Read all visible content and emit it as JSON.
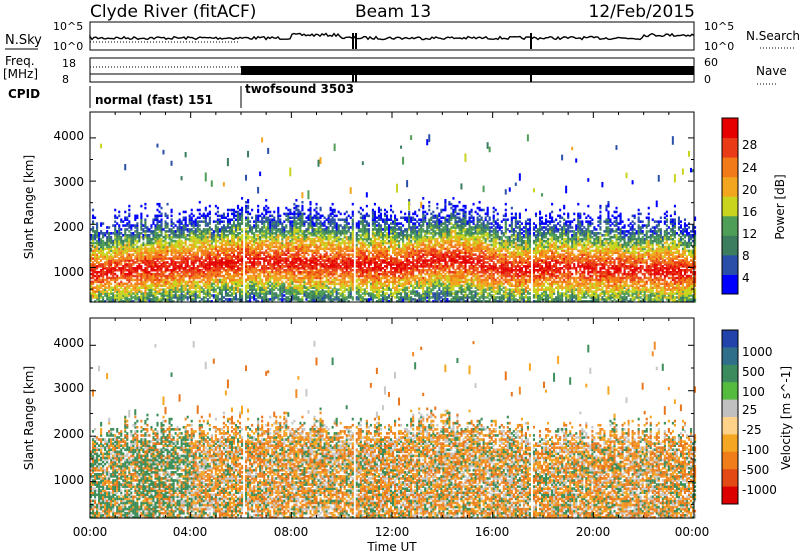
{
  "header": {
    "station": "Clyde River (fitACF)",
    "beam": "Beam 13",
    "date": "12/Feb/2015"
  },
  "params": {
    "nsky_label": "N.Sky",
    "nsearch_label": "N.Search",
    "freq_label": "Freq.",
    "freq_unit": "[MHz]",
    "nave_label": "Nave",
    "cpid_label": "CPID",
    "nsky_ticks": [
      "10^5",
      "10^0"
    ],
    "nsearch_ticks": [
      "10^5",
      "10^0"
    ],
    "freq_ticks": [
      "18",
      "8"
    ],
    "nave_ticks": [
      "60",
      "0"
    ]
  },
  "cpid_segments": [
    {
      "label": "normal (fast) 151",
      "start_h": 0,
      "end_h": 6
    },
    {
      "label": "twofsound 3503",
      "start_h": 6,
      "end_h": 24
    }
  ],
  "time_axis": {
    "label": "Time UT",
    "ticks": [
      "00:00",
      "04:00",
      "08:00",
      "12:00",
      "16:00",
      "20:00",
      "00:00"
    ],
    "range_h": [
      0,
      24
    ]
  },
  "colors": {
    "power": [
      "#0000ff",
      "#2a4fa8",
      "#3c7d5f",
      "#4f9e57",
      "#c8d41e",
      "#f2a51f",
      "#f27a18",
      "#ea3b17",
      "#e60000"
    ],
    "velocity": [
      "#2244aa",
      "#2f6f8a",
      "#3b8b5f",
      "#55bb3f",
      "#c0c0c0",
      "#ffd28a",
      "#f5a623",
      "#f07d1a",
      "#e34a14",
      "#dd0000"
    ],
    "vel_main": [
      "#f28c28",
      "#f5a623",
      "#3c8f5a",
      "#c8c8c8",
      "#e8761e"
    ]
  },
  "chart_data": [
    {
      "type": "heatmap",
      "name": "power",
      "ylabel": "Slant Range [km]",
      "yticks": [
        "4000",
        "3000",
        "2000",
        "1000"
      ],
      "ylim": [
        200,
        4600
      ],
      "xlim": [
        0,
        24
      ],
      "colorbar_label": "Power [dB]",
      "colorbar_ticks": [
        "28",
        "24",
        "20",
        "16",
        "12",
        "8",
        "4"
      ],
      "colorbar_range": [
        0,
        32
      ],
      "description_series": [
        {
          "name": "main_scatter_band",
          "center_km": [
            1000,
            900,
            950,
            1000,
            950,
            900,
            850
          ],
          "t_h": [
            0,
            4,
            8,
            12,
            16,
            20,
            24
          ]
        }
      ]
    },
    {
      "type": "heatmap",
      "name": "velocity",
      "ylabel": "Slant Range [km]",
      "yticks": [
        "4000",
        "3000",
        "2000",
        "1000"
      ],
      "ylim": [
        200,
        4600
      ],
      "xlim": [
        0,
        24
      ],
      "colorbar_label": "Velocity [m s^-1]",
      "colorbar_ticks": [
        "1000",
        "500",
        "100",
        "25",
        "-25",
        "-100",
        "-500",
        "-1000"
      ]
    }
  ]
}
